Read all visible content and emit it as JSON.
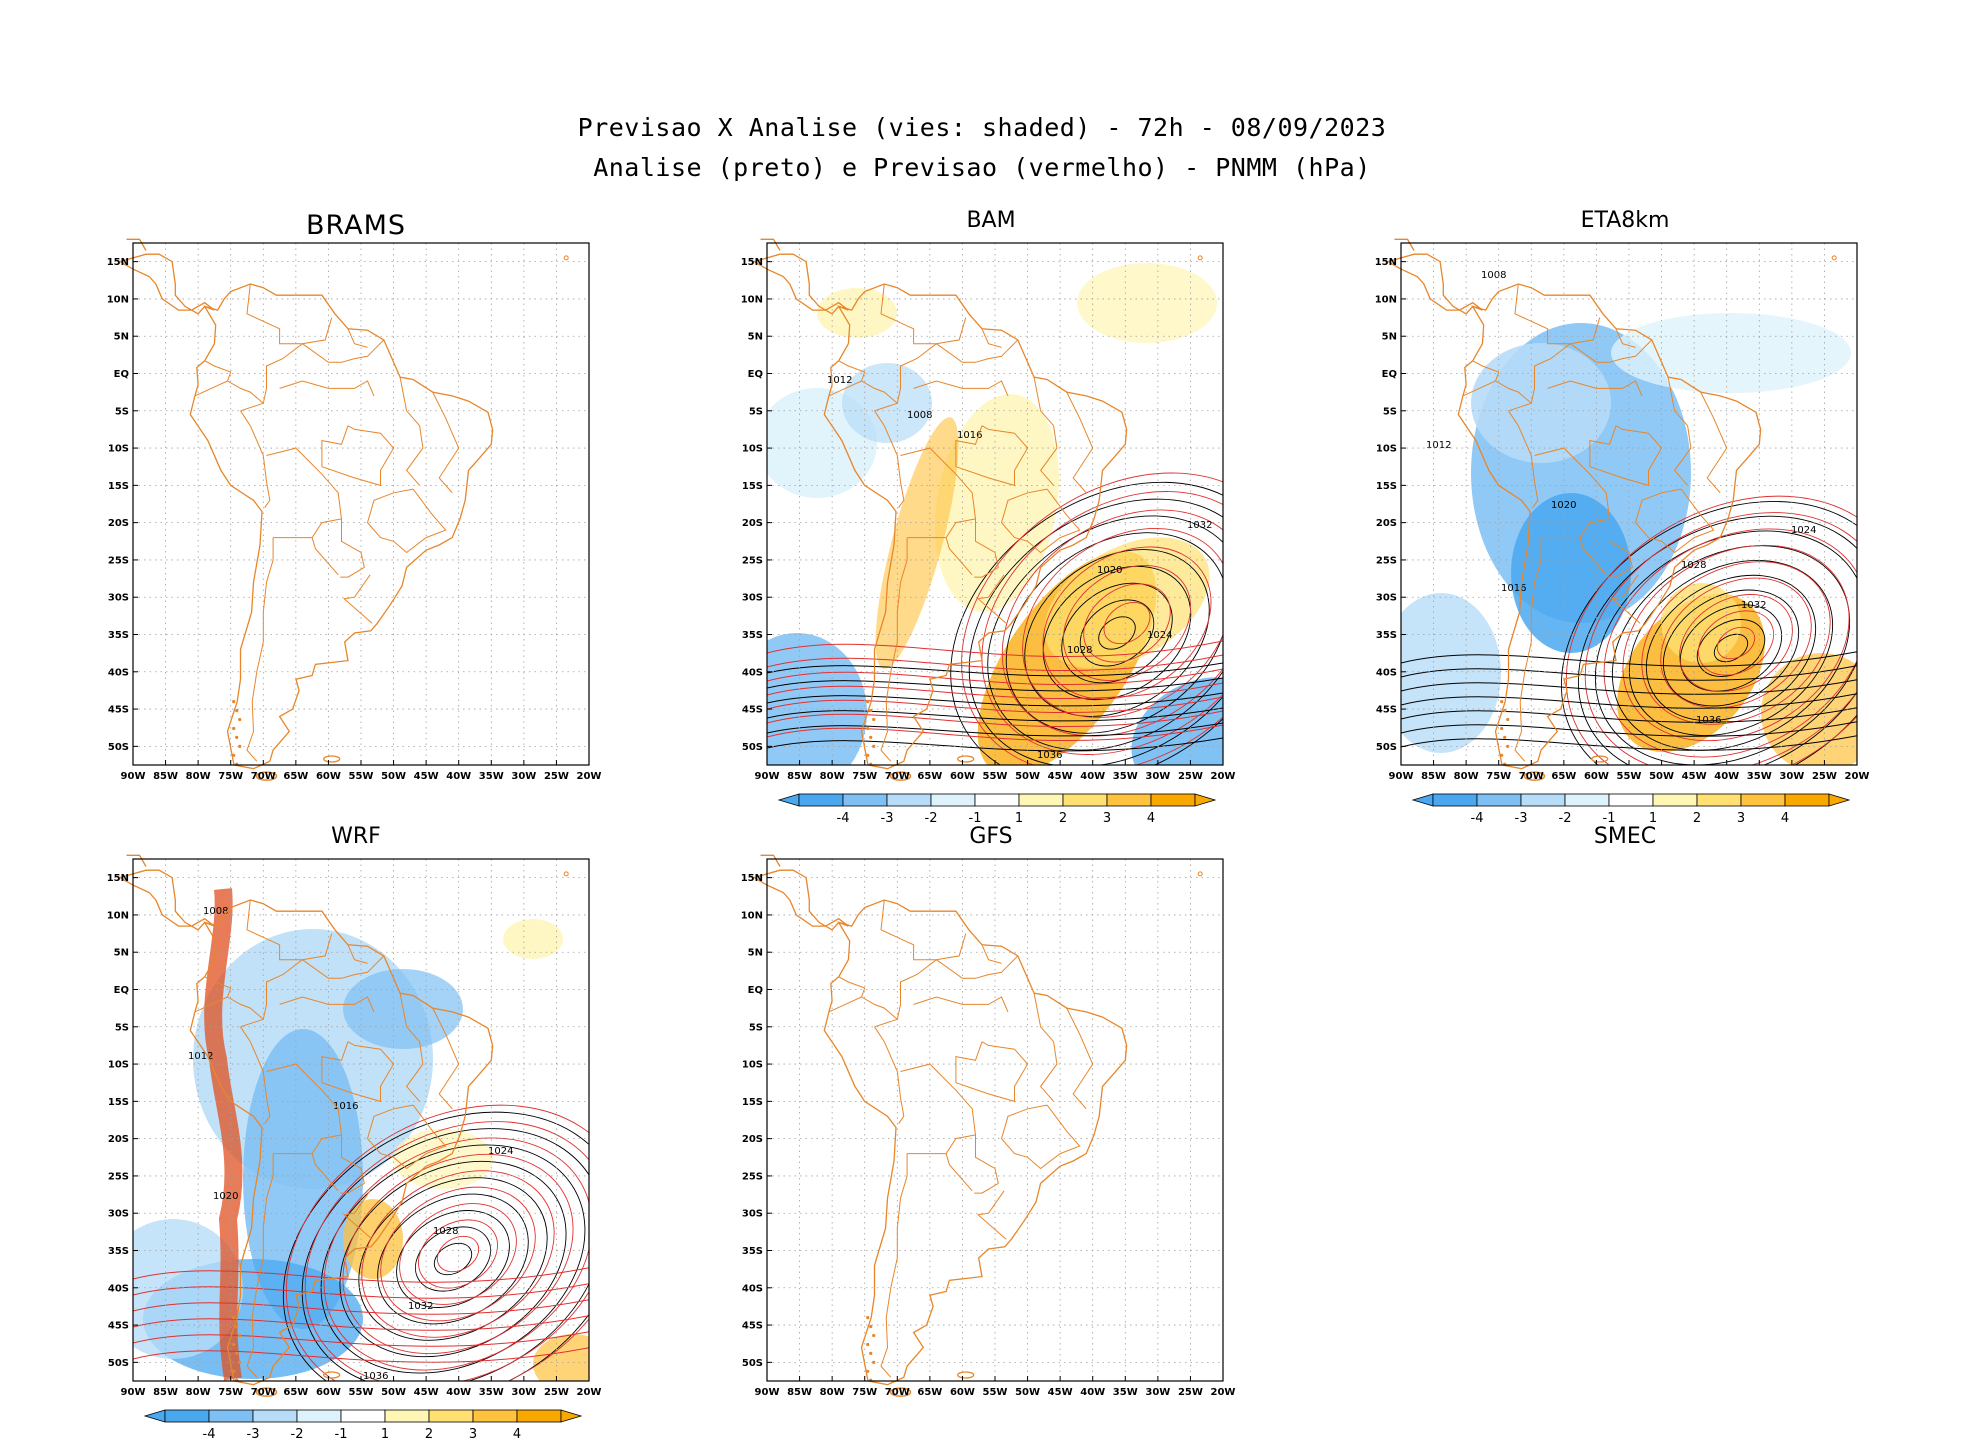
{
  "header": {
    "line1": "Previsao X Analise (vies: shaded) - 72h - 08/09/2023",
    "line2": "Analise (preto) e Previsao (vermelho) - PNMM (hPa)"
  },
  "axes": {
    "lat_labels": [
      "15N",
      "10N",
      "5N",
      "EQ",
      "5S",
      "10S",
      "15S",
      "20S",
      "25S",
      "30S",
      "35S",
      "40S",
      "45S",
      "50S"
    ],
    "lon_labels": [
      "90W",
      "85W",
      "80W",
      "75W",
      "70W",
      "65W",
      "60W",
      "55W",
      "50W",
      "45W",
      "40W",
      "35W",
      "30W",
      "25W",
      "20W"
    ]
  },
  "colorbar": {
    "labels": [
      "-4",
      "-3",
      "-2",
      "-1",
      "1",
      "2",
      "3",
      "4"
    ],
    "colors": [
      "#4aa8f0",
      "#7ec0f4",
      "#b6dcf8",
      "#def2fb",
      "#ffffff",
      "#fff5b4",
      "#ffe070",
      "#ffc23c",
      "#f9a800"
    ]
  },
  "panels": {
    "brams": {
      "title": "BRAMS",
      "has_data": false
    },
    "bam": {
      "title": "BAM",
      "has_data": true,
      "bias": "positive",
      "contour_labels": [
        "1012",
        "1008",
        "1016",
        "1020",
        "1024",
        "1028",
        "1032",
        "1036"
      ]
    },
    "eta": {
      "title": "ETA8km",
      "has_data": true,
      "bias": "negative",
      "contour_labels": [
        "1008",
        "1012",
        "1016",
        "1020",
        "1024",
        "1028",
        "1032",
        "1036"
      ]
    },
    "wrf": {
      "title": "WRF",
      "has_data": true,
      "bias": "negative",
      "contour_labels": [
        "1008",
        "1012",
        "1016",
        "1020",
        "1024",
        "1028",
        "1032",
        "1036"
      ]
    },
    "gfs": {
      "title": "GFS",
      "has_data": false
    },
    "smec": {
      "title": "SMEC",
      "has_data": false
    }
  },
  "colors": {
    "coast": "#e8862a",
    "analysis": "#000000",
    "forecast": "#e03030"
  }
}
